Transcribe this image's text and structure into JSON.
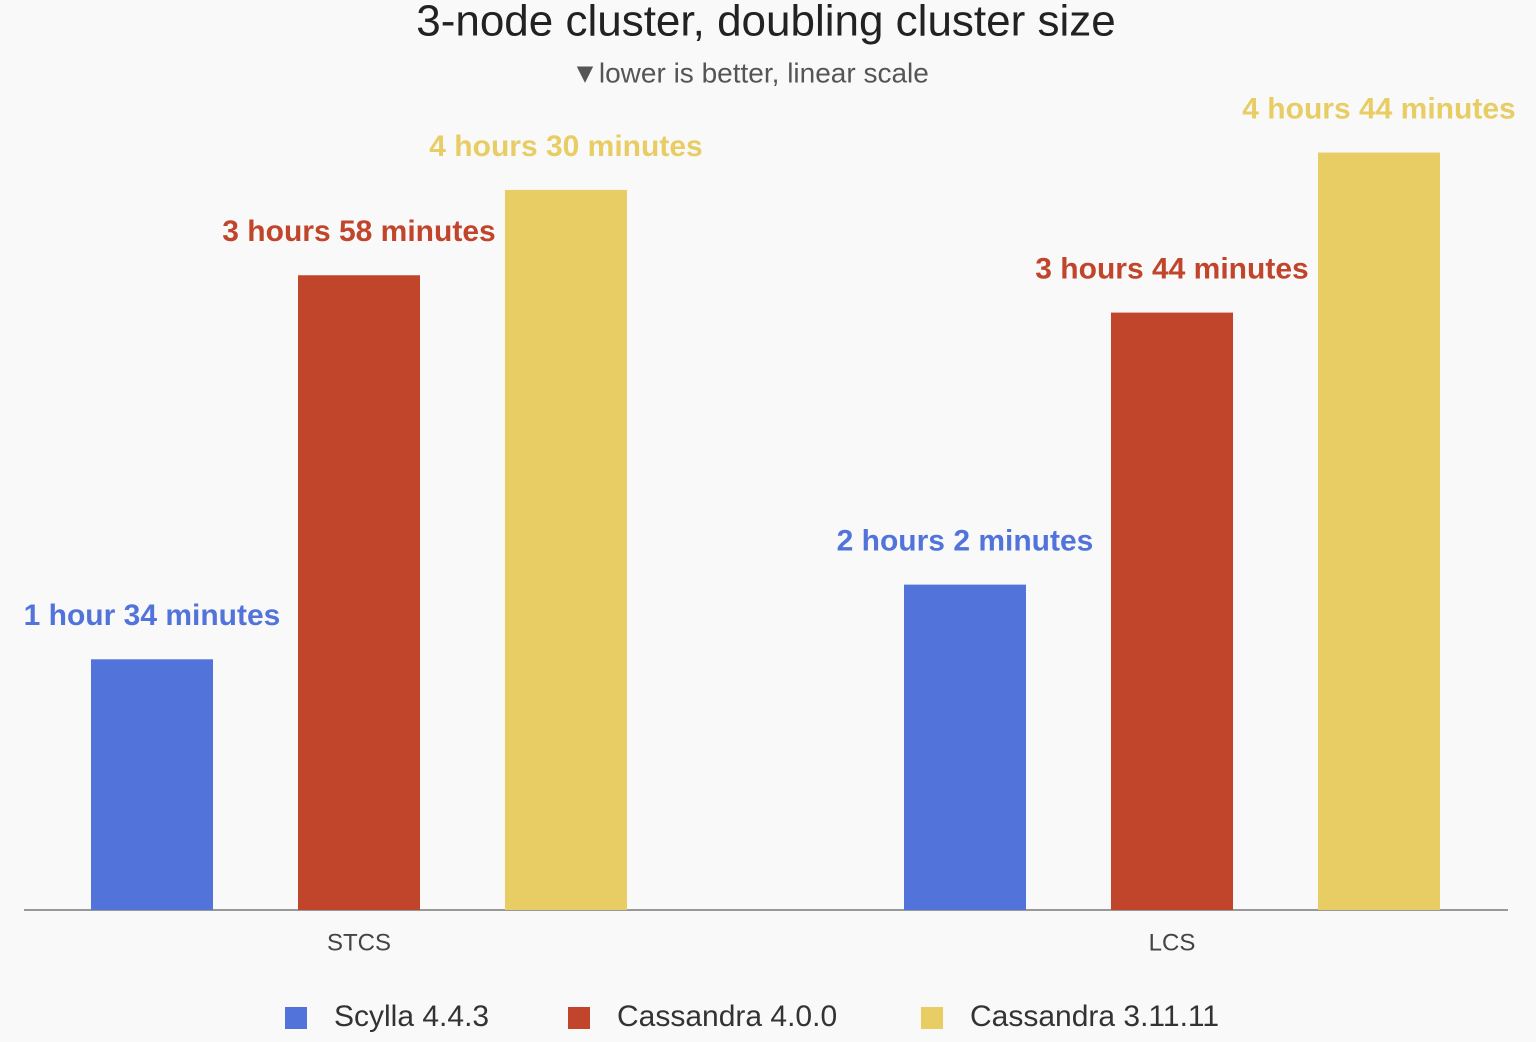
{
  "chart_data": {
    "type": "bar",
    "title": "3-node cluster, doubling cluster size",
    "subtitle": "▼lower is better, linear scale",
    "categories": [
      "STCS",
      "LCS"
    ],
    "series": [
      {
        "name": "Scylla 4.4.3",
        "color": "#5274da",
        "values": [
          94,
          122
        ],
        "value_labels": [
          "1 hour 34 minutes",
          "2 hours 2 minutes"
        ]
      },
      {
        "name": "Cassandra 4.0.0",
        "color": "#c0452b",
        "values": [
          238,
          224
        ],
        "value_labels": [
          "3 hours 58 minutes",
          "3 hours 44 minutes"
        ]
      },
      {
        "name": "Cassandra 3.11.11",
        "color": "#e8cd65",
        "values": [
          270,
          284
        ],
        "value_labels": [
          "4 hours 30 minutes",
          "4 hours 44 minutes"
        ]
      }
    ],
    "legend": "bottom"
  }
}
